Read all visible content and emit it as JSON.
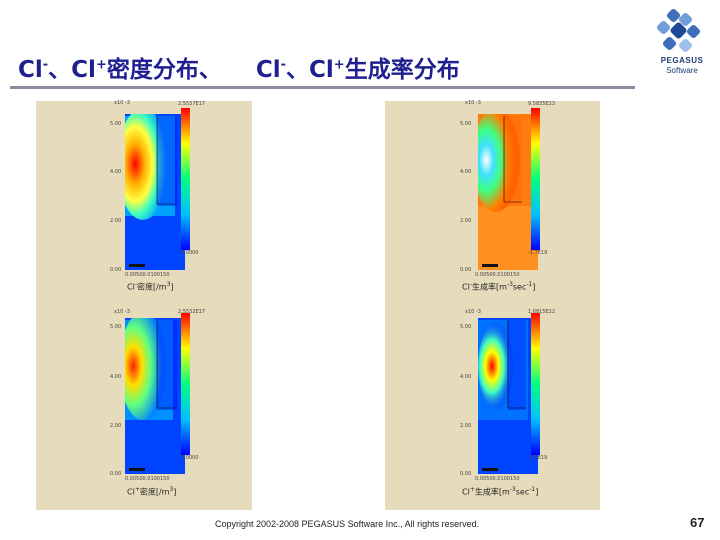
{
  "slide": {
    "title_left_1": "Cl",
    "title_left_sup1": "-",
    "title_left_2": "、Cl",
    "title_left_sup2": "+",
    "title_left_3": "密度分布、",
    "title_right_1": "Cl",
    "title_right_sup1": "-",
    "title_right_2": "、Cl",
    "title_right_sup2": "+",
    "title_right_3": "生成率分布",
    "footer": "Copyright 2002-2008 PEGASUS Software Inc., All rights reserved.",
    "page_number": "67"
  },
  "logo": {
    "name": "PEGASUS",
    "sub": "Software"
  },
  "plots": {
    "tl": {
      "scale": "x10 -3",
      "y500": "5.00",
      "y400": "4.00",
      "y200": "2.00",
      "y0": "0.00",
      "xticks": "0.00500.0100150",
      "cb_top": "2.5537E17",
      "cb_bot": "0.0000",
      "caption_pre": "Cl",
      "caption_sup": "-",
      "caption_post": "密度[/m",
      "caption_unit_sup": "3",
      "caption_end": "]"
    },
    "tr": {
      "scale": "x10 -3",
      "y500": "5.00",
      "y400": "4.00",
      "y200": "2.00",
      "y0": "0.00",
      "xticks": "0.00500.0100150",
      "cb_top": "9.5835E23",
      "cb_bot": "-1.7E19",
      "caption_pre": "Cl",
      "caption_sup": "-",
      "caption_post": "生成率[m",
      "caption_unit_sup": "-3",
      "caption_mid": "sec",
      "caption_sec_sup": "-1",
      "caption_end": "]"
    },
    "bl": {
      "scale": "x10 -3",
      "y500": "5.00",
      "y400": "4.00",
      "y200": "2.00",
      "y0": "0.00",
      "xticks": "0.00500.0100150",
      "cb_top": "2.5532E17",
      "cb_bot": "0.0000",
      "caption_pre": "Cl",
      "caption_sup": "+",
      "caption_post": "密度[/m",
      "caption_unit_sup": "3",
      "caption_end": "]"
    },
    "br": {
      "scale": "x10 -3",
      "y500": "5.00",
      "y400": "4.00",
      "y200": "2.00",
      "y0": "0.00",
      "xticks": "0.00500.0100150",
      "cb_top": "1.6815E22",
      "cb_bot": "-1.9E19",
      "caption_pre": "Cl",
      "caption_sup": "+",
      "caption_post": "生成率[m",
      "caption_unit_sup": "-3",
      "caption_mid": "sec",
      "caption_sec_sup": "-1",
      "caption_end": "]"
    }
  },
  "colors": {
    "title": "#1f1f8f",
    "panel": "#e6dcbc",
    "rule": "#8a8aa0"
  }
}
